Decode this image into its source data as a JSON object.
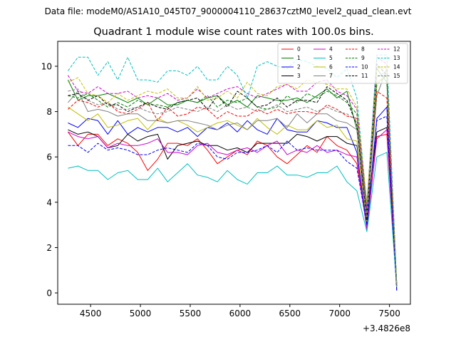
{
  "suptitle": "Data file: modeM0/AS1A10_045T07_9000004110_28637cztM0_level2_quad_clean.evt",
  "chart_data": {
    "type": "line",
    "title": "Quadrant 1 module wise count rates with 100.0s bins.",
    "xlabel": "",
    "ylabel": "",
    "offset_label": "+3.4826e8",
    "xlim": [
      4170,
      7710
    ],
    "ylim": [
      -0.5,
      11.1
    ],
    "xticks": [
      4500,
      5000,
      5500,
      6000,
      6500,
      7000,
      7500
    ],
    "yticks": [
      0,
      2,
      4,
      6,
      8,
      10
    ],
    "x": [
      4273,
      4373,
      4473,
      4573,
      4673,
      4773,
      4873,
      4973,
      5073,
      5173,
      5273,
      5373,
      5473,
      5573,
      5673,
      5773,
      5873,
      5973,
      6073,
      6173,
      6273,
      6373,
      6473,
      6573,
      6673,
      6773,
      6873,
      6973,
      7073,
      7173,
      7273,
      7373,
      7473,
      7573
    ],
    "legend_columns": 4,
    "legend_location": "upper right",
    "series": [
      {
        "name": "0",
        "color": "#ff0000",
        "dash": "solid",
        "values": [
          7.1,
          6.5,
          7.0,
          7.0,
          6.5,
          6.8,
          6.6,
          6.2,
          5.4,
          5.9,
          6.6,
          6.6,
          6.5,
          6.8,
          6.3,
          5.7,
          6.0,
          6.3,
          6.1,
          6.7,
          6.5,
          6.0,
          5.7,
          6.1,
          6.5,
          6.2,
          6.9,
          6.5,
          6.3,
          5.7,
          2.9,
          6.9,
          7.0,
          0.3
        ]
      },
      {
        "name": "1",
        "color": "#008000",
        "dash": "solid",
        "values": [
          9.4,
          8.5,
          8.7,
          8.7,
          8.8,
          8.6,
          8.4,
          8.6,
          8.3,
          8.6,
          8.3,
          8.3,
          8.5,
          8.4,
          8.6,
          8.7,
          8.3,
          8.5,
          8.2,
          8.7,
          8.6,
          8.5,
          8.5,
          8.6,
          8.4,
          8.7,
          9.0,
          8.6,
          8.9,
          7.2,
          3.2,
          9.9,
          9.3,
          0.4
        ]
      },
      {
        "name": "2",
        "color": "#0000ff",
        "dash": "solid",
        "values": [
          7.5,
          7.3,
          7.7,
          7.6,
          7.0,
          7.6,
          7.0,
          7.3,
          7.1,
          7.3,
          7.3,
          7.1,
          7.3,
          6.9,
          7.3,
          7.2,
          7.5,
          7.1,
          7.6,
          7.2,
          7.0,
          7.7,
          7.2,
          7.1,
          7.1,
          7.6,
          7.5,
          7.3,
          7.3,
          6.2,
          3.0,
          7.7,
          8.2,
          0.1
        ]
      },
      {
        "name": "3",
        "color": "#000000",
        "dash": "solid",
        "values": [
          7.2,
          7.0,
          7.1,
          6.9,
          6.4,
          6.5,
          7.0,
          6.7,
          6.9,
          7.0,
          5.9,
          6.5,
          6.6,
          6.7,
          6.5,
          6.5,
          6.3,
          6.4,
          6.2,
          6.6,
          6.6,
          6.6,
          6.6,
          7.0,
          6.9,
          6.7,
          6.9,
          6.9,
          6.6,
          6.5,
          3.5,
          7.1,
          7.3,
          0.3
        ]
      },
      {
        "name": "4",
        "color": "#cc00cc",
        "dash": "solid",
        "values": [
          7.1,
          6.9,
          6.8,
          6.9,
          6.4,
          6.6,
          6.5,
          6.5,
          6.6,
          6.8,
          6.2,
          6.2,
          6.1,
          6.5,
          6.6,
          6.2,
          6.1,
          6.3,
          6.4,
          6.2,
          6.5,
          6.7,
          6.1,
          6.3,
          6.2,
          6.5,
          6.2,
          6.3,
          6.1,
          6.0,
          2.8,
          6.8,
          7.2,
          0.2
        ]
      },
      {
        "name": "5",
        "color": "#00bfbf",
        "dash": "solid",
        "values": [
          5.5,
          5.6,
          5.4,
          5.4,
          5.0,
          5.3,
          5.4,
          5.0,
          5.0,
          5.5,
          4.9,
          5.3,
          5.7,
          5.2,
          5.1,
          4.9,
          5.4,
          5.0,
          4.8,
          5.3,
          5.3,
          5.6,
          5.2,
          5.2,
          5.1,
          5.3,
          5.3,
          5.6,
          4.9,
          4.5,
          2.7,
          6.0,
          6.2,
          0.2
        ]
      },
      {
        "name": "6",
        "color": "#bfbf00",
        "dash": "solid",
        "values": [
          8.2,
          7.9,
          7.6,
          7.9,
          7.3,
          7.4,
          7.6,
          7.7,
          7.2,
          7.7,
          7.5,
          7.6,
          7.4,
          7.1,
          7.3,
          7.5,
          7.6,
          7.4,
          7.2,
          7.7,
          7.3,
          7.0,
          7.4,
          7.2,
          7.2,
          7.6,
          7.3,
          7.4,
          6.8,
          6.7,
          3.1,
          9.3,
          9.6,
          0.3
        ]
      },
      {
        "name": "7",
        "color": "#808080",
        "dash": "solid",
        "values": [
          8.4,
          8.9,
          8.0,
          8.1,
          8.0,
          7.8,
          7.9,
          7.9,
          7.6,
          7.6,
          7.5,
          7.6,
          7.6,
          7.5,
          7.4,
          7.2,
          7.4,
          7.5,
          7.2,
          7.6,
          7.6,
          7.7,
          7.3,
          7.9,
          7.5,
          7.9,
          7.9,
          7.6,
          7.5,
          7.2,
          3.3,
          8.7,
          9.9,
          0.3
        ]
      },
      {
        "name": "8",
        "color": "#ff0000",
        "dash": "dashed",
        "values": [
          8.1,
          8.5,
          8.4,
          8.2,
          8.4,
          8.0,
          7.9,
          8.1,
          8.4,
          7.6,
          8.2,
          7.8,
          7.9,
          8.2,
          8.1,
          7.7,
          8.0,
          7.8,
          7.8,
          8.1,
          7.9,
          8.1,
          7.9,
          8.0,
          8.0,
          7.9,
          8.3,
          8.1,
          7.8,
          7.7,
          3.7,
          8.9,
          8.6,
          0.3
        ]
      },
      {
        "name": "9",
        "color": "#008000",
        "dash": "dashed",
        "values": [
          8.7,
          8.6,
          8.8,
          8.5,
          8.2,
          8.4,
          8.2,
          8.5,
          8.3,
          8.3,
          8.2,
          8.4,
          8.5,
          8.4,
          8.7,
          8.2,
          8.5,
          8.4,
          8.6,
          8.2,
          8.1,
          8.2,
          8.7,
          8.4,
          8.8,
          8.6,
          8.9,
          8.7,
          8.4,
          7.9,
          3.6,
          9.2,
          9.6,
          0.4
        ]
      },
      {
        "name": "10",
        "color": "#0000ff",
        "dash": "dashed",
        "values": [
          6.5,
          6.5,
          6.2,
          6.6,
          6.3,
          6.4,
          6.3,
          6.1,
          6.1,
          6.3,
          6.4,
          6.3,
          6.2,
          6.6,
          6.5,
          6.0,
          5.9,
          6.2,
          6.2,
          6.3,
          6.5,
          6.2,
          6.7,
          6.3,
          6.4,
          6.3,
          6.3,
          6.3,
          5.8,
          5.5,
          3.0,
          7.6,
          7.8,
          0.1
        ]
      },
      {
        "name": "11",
        "color": "#000000",
        "dash": "dashed",
        "values": [
          8.7,
          8.8,
          8.5,
          8.7,
          8.3,
          8.3,
          8.0,
          8.2,
          8.4,
          8.2,
          8.1,
          8.4,
          8.5,
          8.6,
          8.1,
          8.7,
          8.2,
          8.9,
          8.6,
          8.2,
          8.3,
          8.6,
          8.2,
          8.5,
          8.5,
          8.4,
          9.1,
          8.8,
          8.5,
          7.4,
          3.2,
          10.1,
          9.6,
          0.3
        ]
      },
      {
        "name": "12",
        "color": "#cc00cc",
        "dash": "dashed",
        "values": [
          9.6,
          8.9,
          8.8,
          9.1,
          8.8,
          8.8,
          8.9,
          8.6,
          8.7,
          8.6,
          8.8,
          8.5,
          8.6,
          9.0,
          8.6,
          8.8,
          9.0,
          9.1,
          8.8,
          8.6,
          8.8,
          9.0,
          9.2,
          8.9,
          8.9,
          9.3,
          9.4,
          8.9,
          8.7,
          8.1,
          3.8,
          10.4,
          10.1,
          0.4
        ]
      },
      {
        "name": "13",
        "color": "#00bfbf",
        "dash": "dashed",
        "values": [
          9.8,
          10.4,
          10.4,
          9.6,
          10.2,
          9.4,
          10.4,
          9.4,
          9.4,
          9.3,
          9.8,
          9.8,
          9.6,
          10.0,
          9.4,
          9.4,
          10.0,
          9.6,
          8.6,
          10.0,
          10.2,
          10.0,
          9.9,
          10.3,
          10.2,
          10.0,
          9.9,
          9.5,
          9.9,
          8.6,
          3.9,
          10.5,
          10.5,
          0.4
        ]
      },
      {
        "name": "14",
        "color": "#bfbf00",
        "dash": "dashed",
        "values": [
          9.3,
          9.5,
          8.8,
          8.7,
          8.4,
          8.8,
          8.5,
          8.7,
          8.9,
          8.8,
          9.0,
          8.6,
          8.6,
          9.1,
          8.5,
          8.6,
          8.9,
          8.6,
          9.3,
          8.8,
          8.7,
          9.1,
          9.2,
          9.0,
          9.4,
          9.3,
          9.2,
          9.0,
          9.0,
          8.2,
          4.0,
          9.9,
          9.9,
          0.3
        ]
      },
      {
        "name": "15",
        "color": "#808080",
        "dash": "dashed",
        "values": [
          8.9,
          9.0,
          8.5,
          8.3,
          8.4,
          8.1,
          8.1,
          8.2,
          8.0,
          7.9,
          8.0,
          8.2,
          8.1,
          8.0,
          8.2,
          8.0,
          8.3,
          8.1,
          8.2,
          8.0,
          8.1,
          8.3,
          8.0,
          8.1,
          8.2,
          8.0,
          8.2,
          8.0,
          7.9,
          7.6,
          3.4,
          9.5,
          9.8,
          0.3
        ]
      }
    ]
  }
}
